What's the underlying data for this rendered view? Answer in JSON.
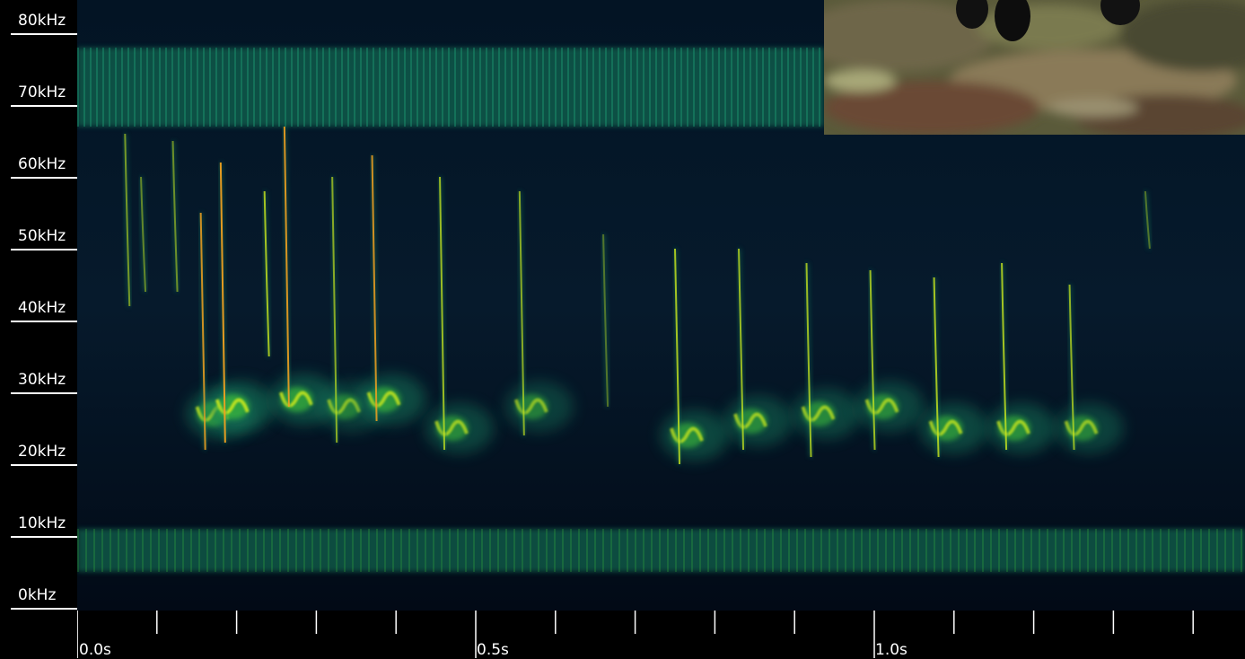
{
  "chart_data": {
    "type": "heatmap",
    "title": "",
    "xlabel": "",
    "ylabel": "",
    "y_unit": "kHz",
    "x_unit": "s",
    "ylim": [
      0,
      80
    ],
    "xlim": [
      0,
      1.46
    ],
    "y_ticks": [
      "80kHz",
      "70kHz",
      "60kHz",
      "50kHz",
      "40kHz",
      "30kHz",
      "20kHz",
      "10kHz",
      "0kHz"
    ],
    "y_tick_values": [
      80,
      70,
      60,
      50,
      40,
      30,
      20,
      10,
      0
    ],
    "x_tick_labels": [
      "0.0s",
      "0.5s",
      "1.0s"
    ],
    "x_tick_label_values": [
      0.0,
      0.5,
      1.0
    ],
    "x_minor_tick_values": [
      0.1,
      0.2,
      0.3,
      0.4,
      0.6,
      0.7,
      0.8,
      0.9,
      1.1,
      1.2,
      1.3,
      1.4
    ],
    "colormap": [
      "#020a1a",
      "#0b3b4a",
      "#13805e",
      "#3cbf3a",
      "#c8e61e",
      "#f0a020"
    ],
    "bands": [
      {
        "kind": "noise-band",
        "f_low": 67,
        "f_high": 78
      },
      {
        "kind": "noise-band",
        "f_low": 5,
        "f_high": 11
      }
    ],
    "calls": [
      {
        "t": 0.06,
        "f_start": 66,
        "f_end": 42,
        "intensity": 0.6
      },
      {
        "t": 0.08,
        "f_start": 60,
        "f_end": 44,
        "intensity": 0.5
      },
      {
        "t": 0.12,
        "f_start": 65,
        "f_end": 44,
        "intensity": 0.55
      },
      {
        "t": 0.155,
        "f_start": 55,
        "f_end": 22,
        "intensity": 0.9,
        "tail_f": 27
      },
      {
        "t": 0.18,
        "f_start": 62,
        "f_end": 23,
        "intensity": 1.0,
        "tail_f": 28
      },
      {
        "t": 0.235,
        "f_start": 58,
        "f_end": 35,
        "intensity": 0.85
      },
      {
        "t": 0.26,
        "f_start": 67,
        "f_end": 28,
        "intensity": 0.95,
        "tail_f": 29
      },
      {
        "t": 0.32,
        "f_start": 60,
        "f_end": 23,
        "intensity": 0.7,
        "tail_f": 28
      },
      {
        "t": 0.37,
        "f_start": 63,
        "f_end": 26,
        "intensity": 0.9,
        "tail_f": 29
      },
      {
        "t": 0.455,
        "f_start": 60,
        "f_end": 22,
        "intensity": 0.8,
        "tail_f": 25
      },
      {
        "t": 0.555,
        "f_start": 58,
        "f_end": 24,
        "intensity": 0.7,
        "tail_f": 28
      },
      {
        "t": 0.66,
        "f_start": 52,
        "f_end": 28,
        "intensity": 0.4
      },
      {
        "t": 0.75,
        "f_start": 50,
        "f_end": 20,
        "intensity": 0.85,
        "tail_f": 24
      },
      {
        "t": 0.83,
        "f_start": 50,
        "f_end": 22,
        "intensity": 0.8,
        "tail_f": 26
      },
      {
        "t": 0.915,
        "f_start": 48,
        "f_end": 21,
        "intensity": 0.8,
        "tail_f": 27
      },
      {
        "t": 0.995,
        "f_start": 47,
        "f_end": 22,
        "intensity": 0.8,
        "tail_f": 28
      },
      {
        "t": 1.075,
        "f_start": 46,
        "f_end": 21,
        "intensity": 0.85,
        "tail_f": 25
      },
      {
        "t": 1.16,
        "f_start": 48,
        "f_end": 22,
        "intensity": 0.85,
        "tail_f": 25
      },
      {
        "t": 1.245,
        "f_start": 45,
        "f_end": 22,
        "intensity": 0.75,
        "tail_f": 25
      },
      {
        "t": 1.34,
        "f_start": 58,
        "f_end": 50,
        "intensity": 0.4
      }
    ]
  },
  "video_inset": {
    "subject": "bats-on-rock",
    "colors": [
      "#5a5a3a",
      "#7a6a4a",
      "#3a3a2a",
      "#8a7a5a",
      "#1a1614"
    ]
  }
}
